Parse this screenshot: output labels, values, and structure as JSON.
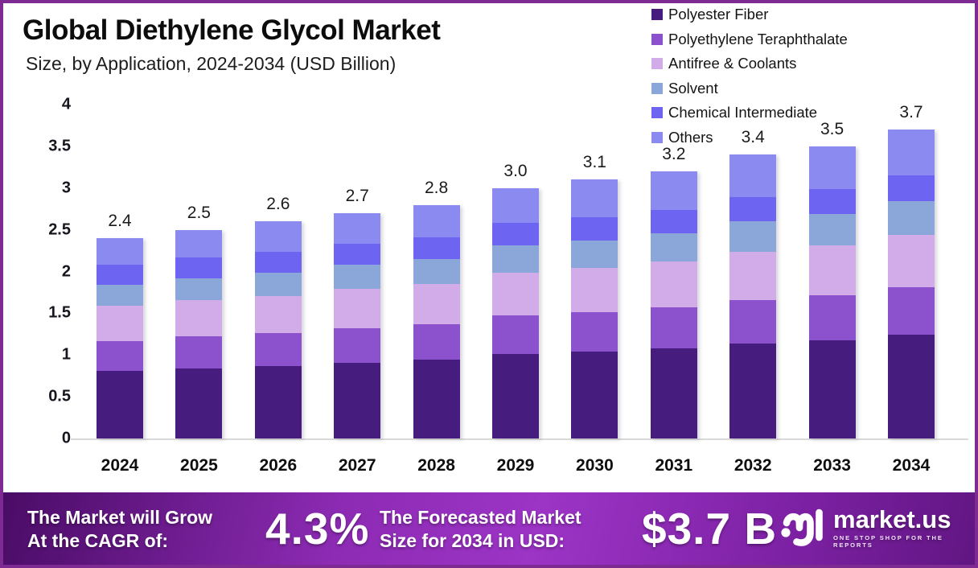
{
  "header": {
    "title": "Global Diethylene Glycol Market",
    "subtitle": "Size, by Application, 2024-2034 (USD Billion)"
  },
  "chart_data": {
    "type": "bar",
    "variant": "stacked-vertical",
    "title": "Global Diethylene Glycol Market Size, by Application, 2024-2034",
    "unit": "USD Billion",
    "grid": false,
    "legend_position": "top-right",
    "ylim": [
      0,
      4
    ],
    "y_ticks": [
      "4",
      "3.5",
      "3",
      "2.5",
      "2",
      "1.5",
      "1",
      "0.5",
      "0"
    ],
    "categories": [
      "2024",
      "2025",
      "2026",
      "2027",
      "2028",
      "2029",
      "2030",
      "2031",
      "2032",
      "2033",
      "2034"
    ],
    "totals": [
      "2.4",
      "2.5",
      "2.6",
      "2.7",
      "2.8",
      "3.0",
      "3.1",
      "3.2",
      "3.4",
      "3.5",
      "3.7"
    ],
    "series": [
      {
        "name": "Polyester Fiber",
        "color": "#461d7e",
        "values": [
          0.81,
          0.84,
          0.87,
          0.91,
          0.94,
          1.01,
          1.04,
          1.08,
          1.14,
          1.18,
          1.24
        ]
      },
      {
        "name": "Polyethylene Teraphthalate",
        "color": "#8c51cc",
        "values": [
          0.36,
          0.38,
          0.39,
          0.41,
          0.43,
          0.46,
          0.47,
          0.49,
          0.52,
          0.54,
          0.57
        ]
      },
      {
        "name": "Antifree & Coolants",
        "color": "#d2abe9",
        "values": [
          0.42,
          0.44,
          0.45,
          0.47,
          0.48,
          0.52,
          0.53,
          0.55,
          0.58,
          0.59,
          0.63
        ]
      },
      {
        "name": "Solvent",
        "color": "#8ba7d9",
        "values": [
          0.25,
          0.26,
          0.28,
          0.29,
          0.3,
          0.32,
          0.33,
          0.34,
          0.36,
          0.38,
          0.4
        ]
      },
      {
        "name": "Chemical Intermediate",
        "color": "#6d64f2",
        "values": [
          0.24,
          0.25,
          0.25,
          0.25,
          0.26,
          0.27,
          0.28,
          0.28,
          0.29,
          0.3,
          0.31
        ]
      },
      {
        "name": "Others",
        "color": "#8b8af0",
        "values": [
          0.32,
          0.33,
          0.36,
          0.37,
          0.39,
          0.42,
          0.45,
          0.46,
          0.51,
          0.51,
          0.55
        ]
      }
    ]
  },
  "footer": {
    "cagr_label_line1": "The Market will Grow",
    "cagr_label_line2": "At the CAGR of:",
    "cagr_value": "4.3%",
    "forecast_label_line1": "The Forecasted Market",
    "forecast_label_line2": "Size for 2034 in USD:",
    "forecast_value": "$3.7 B",
    "brand_name": "market.us",
    "brand_tagline": "ONE STOP SHOP FOR THE REPORTS"
  },
  "colors": {
    "page_border": "#7d2b93",
    "baseline": "#d9d9d9",
    "footer_gradient_start": "#4a0c66",
    "footer_gradient_mid": "#9c34c6",
    "footer_gradient_end": "#611682",
    "text_dark": "#0c0c0c",
    "text_white": "#ffffff"
  }
}
